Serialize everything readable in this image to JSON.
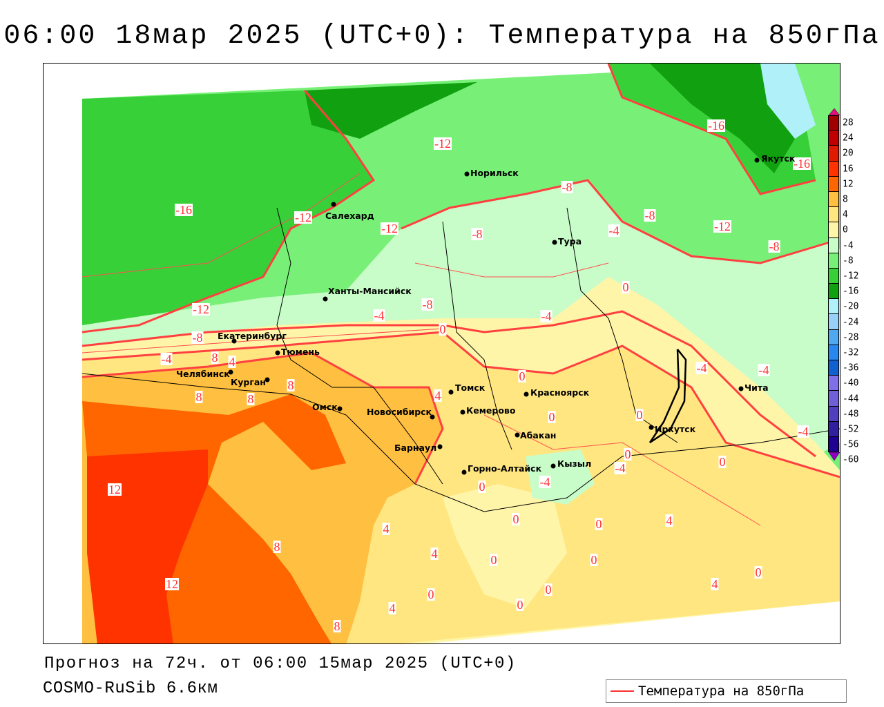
{
  "title": "06:00 18мар 2025 (UTC+0): Температура на 850гПа",
  "footer": {
    "forecast": "Прогноз на 72ч. от 06:00 15мар 2025 (UTC+0)",
    "model": "COSMO-RuSib 6.6км"
  },
  "legend": {
    "label": "Температура на 850гПа",
    "line_color": "#ff3030"
  },
  "colorbar": {
    "labels": [
      "28",
      "24",
      "20",
      "16",
      "12",
      "8",
      "4",
      "0",
      "-4",
      "-8",
      "-12",
      "-16",
      "-20",
      "-24",
      "-28",
      "-32",
      "-36",
      "-40",
      "-44",
      "-48",
      "-52",
      "-56",
      "-60"
    ],
    "colors": [
      "#a00000",
      "#c00000",
      "#e01a00",
      "#ff3300",
      "#ff6600",
      "#ffbf40",
      "#ffe680",
      "#fff5a8",
      "#c8fcc8",
      "#78f078",
      "#38d038",
      "#10a010",
      "#b0f0f8",
      "#98d0f8",
      "#50a8f0",
      "#2888f0",
      "#1060d0",
      "#8070e8",
      "#7060d8",
      "#5040c0",
      "#3020a0",
      "#200090"
    ],
    "top_arrow_color": "#e0107f",
    "bottom_arrow_color": "#9000c0"
  },
  "cities": [
    "Норильск",
    "Якутск",
    "Салехард",
    "Тура",
    "Ханты-Мансийск",
    "Екатеринбург",
    "Тюмень",
    "Челябинск",
    "Курган",
    "Омск",
    "Новосибирск",
    "Томск",
    "Кемерово",
    "Красноярск",
    "Абакан",
    "Барнаул",
    "Горно-Алтайск",
    "Кызыл",
    "Иркутск",
    "Чита"
  ],
  "contour_labels": [
    "-12",
    "-16",
    "-12",
    "-12",
    "-8",
    "-8",
    "-8",
    "-12",
    "-16",
    "-16",
    "-8",
    "-4",
    "0",
    "-12",
    "-8",
    "-4",
    "0",
    "-4",
    "-8",
    "-4",
    "4",
    "8",
    "0",
    "-4",
    "-4",
    "4",
    "8",
    "8",
    "8",
    "0",
    "0",
    "-4",
    "0",
    "-4",
    "0",
    "-4",
    "0",
    "12",
    "0",
    "0",
    "4",
    "4",
    "8",
    "4",
    "0",
    "0",
    "0",
    "12",
    "4",
    "0",
    "0",
    "0",
    "4",
    "8"
  ]
}
